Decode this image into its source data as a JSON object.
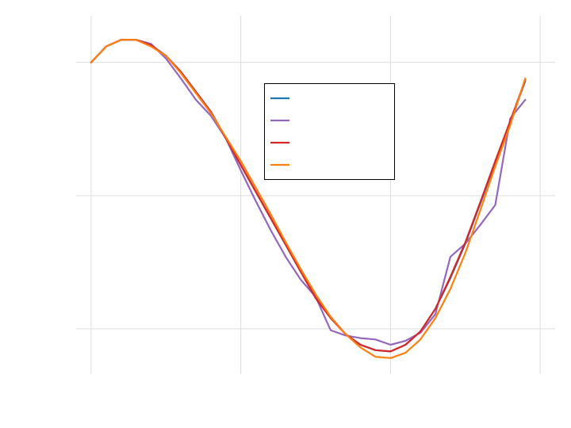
{
  "chart_data": {
    "type": "line",
    "title": "",
    "xlabel": "",
    "ylabel": "",
    "x": [
      0.0,
      0.1,
      0.2,
      0.3,
      0.4,
      0.5,
      0.6,
      0.7,
      0.8,
      0.9,
      1.0,
      1.1,
      1.2,
      1.3,
      1.4,
      1.5,
      1.6,
      1.7,
      1.8,
      1.9,
      2.0,
      2.1,
      2.2,
      2.3,
      2.4,
      2.5,
      2.6,
      2.7,
      2.8,
      2.9
    ],
    "xlim": [
      -0.1,
      3.1
    ],
    "ylim": [
      -1.34,
      1.35
    ],
    "x_gridlines": [
      0,
      1,
      2,
      3
    ],
    "y_gridlines": [
      -1,
      0,
      1
    ],
    "grid": true,
    "legend": {
      "placement": "upper-center",
      "entries": [
        "",
        "",
        "",
        ""
      ]
    },
    "series": [
      {
        "color": "#1f77b4",
        "values": [
          1.0,
          1.12,
          1.17,
          1.17,
          1.13,
          1.05,
          0.93,
          0.78,
          0.63,
          0.43,
          0.23,
          0.03,
          -0.17,
          -0.37,
          -0.57,
          -0.76,
          -0.91,
          -1.04,
          -1.12,
          -1.16,
          -1.17,
          -1.12,
          -1.02,
          -0.85,
          -0.62,
          -0.36,
          -0.06,
          0.25,
          0.55,
          0.86
        ]
      },
      {
        "color": "#9467bd",
        "values": [
          1.0,
          1.12,
          1.17,
          1.17,
          1.14,
          1.03,
          0.88,
          0.72,
          0.6,
          0.43,
          0.19,
          -0.04,
          -0.26,
          -0.46,
          -0.63,
          -0.76,
          -1.01,
          -1.05,
          -1.07,
          -1.08,
          -1.12,
          -1.09,
          -1.03,
          -0.89,
          -0.46,
          -0.36,
          -0.22,
          -0.07,
          0.58,
          0.72
        ]
      },
      {
        "color": "#d62728",
        "values": [
          1.0,
          1.12,
          1.17,
          1.17,
          1.13,
          1.05,
          0.93,
          0.78,
          0.63,
          0.43,
          0.23,
          0.03,
          -0.17,
          -0.37,
          -0.57,
          -0.77,
          -0.92,
          -1.04,
          -1.12,
          -1.16,
          -1.17,
          -1.12,
          -1.02,
          -0.85,
          -0.61,
          -0.35,
          -0.05,
          0.26,
          0.56,
          0.87
        ]
      },
      {
        "color": "#ff7f0e",
        "values": [
          1.0,
          1.12,
          1.17,
          1.17,
          1.12,
          1.05,
          0.92,
          0.77,
          0.62,
          0.44,
          0.26,
          0.06,
          -0.14,
          -0.35,
          -0.55,
          -0.74,
          -0.91,
          -1.04,
          -1.14,
          -1.21,
          -1.22,
          -1.18,
          -1.08,
          -0.92,
          -0.7,
          -0.43,
          -0.11,
          0.22,
          0.53,
          0.88
        ]
      }
    ]
  }
}
